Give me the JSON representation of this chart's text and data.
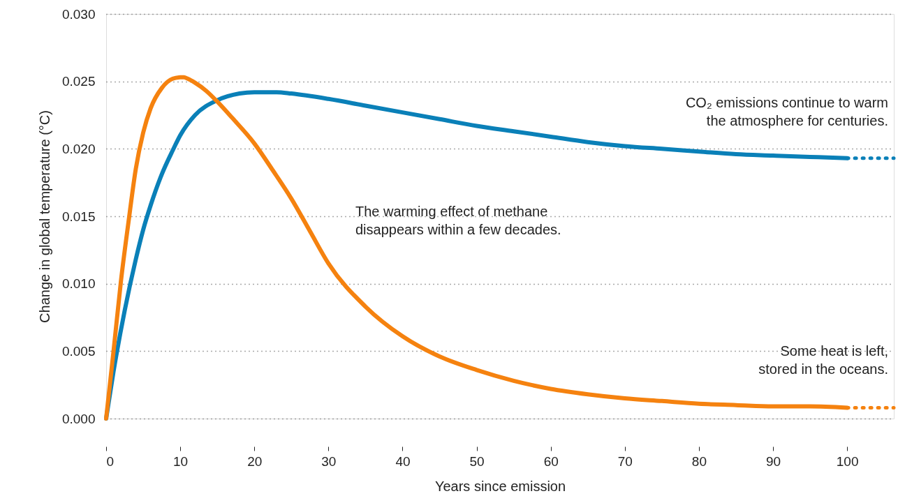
{
  "chart_data": {
    "type": "line",
    "xlabel": "Years since emission",
    "ylabel": "Change in global temperature (°C)",
    "xlim": [
      0,
      106.3
    ],
    "ylim": [
      0,
      0.03
    ],
    "xticks": [
      0,
      10,
      20,
      30,
      40,
      50,
      60,
      70,
      80,
      90,
      100
    ],
    "yticks": [
      {
        "value": 0,
        "label": "0.000"
      },
      {
        "value": 0.005,
        "label": "0.005"
      },
      {
        "value": 0.01,
        "label": "0.010"
      },
      {
        "value": 0.015,
        "label": "0.015"
      },
      {
        "value": 0.02,
        "label": "0.020"
      },
      {
        "value": 0.025,
        "label": "0.025"
      },
      {
        "value": 0.03,
        "label": "0.030"
      }
    ],
    "grid": "y",
    "line_style": "solid",
    "marker": "none",
    "series": [
      {
        "color": "#0a80b8",
        "x": [
          0,
          1,
          2.5,
          4,
          5,
          6,
          7.5,
          9,
          10,
          12,
          15,
          18,
          20,
          23,
          25,
          30,
          35,
          40,
          45,
          50,
          55,
          60,
          65,
          70,
          75,
          80,
          85,
          90,
          95,
          100
        ],
        "values": [
          0,
          0.0035,
          0.008,
          0.0118,
          0.014,
          0.0158,
          0.0181,
          0.0199,
          0.021,
          0.0225,
          0.0236,
          0.0241,
          0.0242,
          0.0242,
          0.0241,
          0.0237,
          0.0232,
          0.0227,
          0.0222,
          0.0217,
          0.0213,
          0.0209,
          0.0205,
          0.0202,
          0.02,
          0.0198,
          0.0196,
          0.0195,
          0.0194,
          0.0193
        ]
      },
      {
        "color": "#f5820f",
        "x": [
          0,
          1,
          2,
          3,
          4,
          5,
          6,
          7.5,
          9,
          10,
          10.5,
          11,
          12,
          13.5,
          15,
          17,
          20,
          22.5,
          25,
          27.5,
          30,
          35,
          40,
          45,
          50,
          55,
          60,
          65,
          70,
          75,
          80,
          85,
          90,
          95,
          100
        ],
        "values": [
          0,
          0.005,
          0.0102,
          0.0145,
          0.0185,
          0.0212,
          0.023,
          0.0245,
          0.0252,
          0.0253,
          0.0253,
          0.0252,
          0.0249,
          0.0243,
          0.0235,
          0.0223,
          0.0204,
          0.0184,
          0.0163,
          0.0139,
          0.0115,
          0.0083,
          0.0061,
          0.0046,
          0.0036,
          0.0028,
          0.0022,
          0.0018,
          0.0015,
          0.0013,
          0.0011,
          0.001,
          0.0009,
          0.0009,
          0.0008
        ]
      },
      {
        "color": "#0a80b8",
        "line_style": "dotted",
        "x": [
          100,
          106.3
        ],
        "values": [
          0.0193,
          0.0193
        ]
      },
      {
        "color": "#f5820f",
        "line_style": "dotted",
        "x": [
          100,
          106.3
        ],
        "values": [
          0.0008,
          0.0008
        ]
      }
    ],
    "annotations": [
      "CO₂ emissions continue to warm\nthe atmosphere for centuries.",
      "The warming effect of methane\ndisappears within a few decades.",
      "Some heat is left,\nstored in the oceans."
    ]
  }
}
